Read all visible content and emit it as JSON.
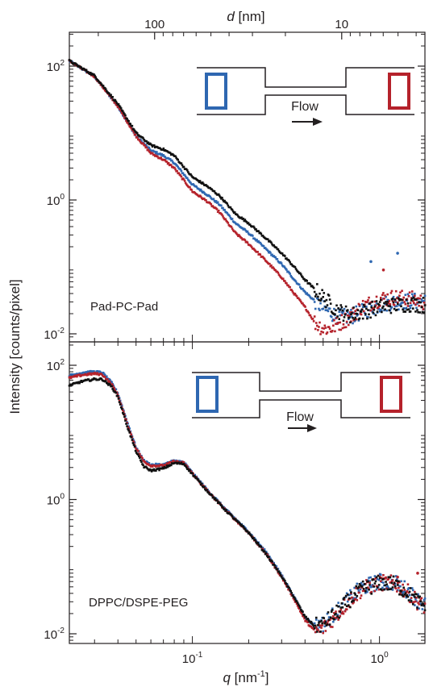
{
  "top_axis": {
    "label_var": "d",
    "label_unit": " [nm]",
    "ticks": [
      {
        "value": 100,
        "text": "100"
      },
      {
        "value": 10,
        "text": "10"
      }
    ]
  },
  "y_label": "Intensity [counts/pixel]",
  "x_label_var": "q",
  "x_label_unit": " [nm",
  "x_label_sup": "-1",
  "x_label_close": "]",
  "colors": {
    "blue": "#2e67b1",
    "red": "#b5222b",
    "black": "#111111",
    "frame": "#231f20"
  },
  "chart_data": [
    {
      "type": "scatter",
      "panel": "top",
      "annotation": "Pad-PC-Pad",
      "inset_label": "Flow",
      "xscale": "log",
      "yscale": "log",
      "xlim": [
        0.022,
        1.75
      ],
      "ylim": [
        0.007,
        130
      ],
      "y_ticks": [
        {
          "value": 100,
          "base": "10",
          "exp": "2"
        },
        {
          "value": 1,
          "base": "10",
          "exp": "0"
        },
        {
          "value": 0.01,
          "base": "10",
          "exp": "-2"
        }
      ],
      "series": [
        {
          "color_key": "blue",
          "points": [
            [
              0.022,
              120
            ],
            [
              0.03,
              70
            ],
            [
              0.04,
              25
            ],
            [
              0.05,
              9
            ],
            [
              0.06,
              5.5
            ],
            [
              0.07,
              4.6
            ],
            [
              0.08,
              3.6
            ],
            [
              0.1,
              1.7
            ],
            [
              0.12,
              1.2
            ],
            [
              0.14,
              0.85
            ],
            [
              0.17,
              0.45
            ],
            [
              0.2,
              0.32
            ],
            [
              0.25,
              0.18
            ],
            [
              0.3,
              0.11
            ],
            [
              0.35,
              0.065
            ],
            [
              0.4,
              0.042
            ],
            [
              0.5,
              0.024
            ],
            [
              0.6,
              0.018
            ],
            [
              0.7,
              0.018
            ],
            [
              0.8,
              0.021
            ],
            [
              1.0,
              0.027
            ],
            [
              1.2,
              0.03
            ],
            [
              1.5,
              0.031
            ],
            [
              1.7,
              0.03
            ]
          ]
        },
        {
          "color_key": "red",
          "points": [
            [
              0.022,
              120
            ],
            [
              0.03,
              70
            ],
            [
              0.04,
              25
            ],
            [
              0.05,
              9
            ],
            [
              0.06,
              5.0
            ],
            [
              0.07,
              4.0
            ],
            [
              0.08,
              3.0
            ],
            [
              0.1,
              1.35
            ],
            [
              0.12,
              0.95
            ],
            [
              0.14,
              0.65
            ],
            [
              0.17,
              0.32
            ],
            [
              0.2,
              0.22
            ],
            [
              0.25,
              0.12
            ],
            [
              0.3,
              0.07
            ],
            [
              0.35,
              0.04
            ],
            [
              0.4,
              0.025
            ],
            [
              0.45,
              0.015
            ],
            [
              0.5,
              0.012
            ],
            [
              0.55,
              0.012
            ],
            [
              0.6,
              0.014
            ],
            [
              0.7,
              0.018
            ],
            [
              0.8,
              0.025
            ],
            [
              1.0,
              0.033
            ],
            [
              1.2,
              0.035
            ],
            [
              1.5,
              0.033
            ],
            [
              1.7,
              0.03
            ]
          ]
        },
        {
          "color_key": "black",
          "points": [
            [
              0.022,
              120
            ],
            [
              0.03,
              72
            ],
            [
              0.04,
              27
            ],
            [
              0.05,
              10
            ],
            [
              0.06,
              6.6
            ],
            [
              0.07,
              5.7
            ],
            [
              0.08,
              4.6
            ],
            [
              0.1,
              2.2
            ],
            [
              0.12,
              1.6
            ],
            [
              0.14,
              1.15
            ],
            [
              0.17,
              0.62
            ],
            [
              0.2,
              0.45
            ],
            [
              0.25,
              0.26
            ],
            [
              0.3,
              0.16
            ],
            [
              0.35,
              0.1
            ],
            [
              0.4,
              0.064
            ],
            [
              0.5,
              0.035
            ],
            [
              0.6,
              0.022
            ],
            [
              0.7,
              0.019
            ],
            [
              0.8,
              0.021
            ],
            [
              1.0,
              0.025
            ],
            [
              1.2,
              0.027
            ],
            [
              1.5,
              0.028
            ],
            [
              1.7,
              0.027
            ]
          ]
        }
      ],
      "outliers": [
        {
          "color_key": "blue",
          "q": 0.9,
          "y": 0.12
        },
        {
          "color_key": "blue",
          "q": 1.25,
          "y": 0.16
        },
        {
          "color_key": "red",
          "q": 1.05,
          "y": 0.09
        }
      ]
    },
    {
      "type": "scatter",
      "panel": "bottom",
      "annotation": "DPPC/DSPE-PEG",
      "inset_label": "Flow",
      "xscale": "log",
      "yscale": "log",
      "xlim": [
        0.022,
        1.75
      ],
      "ylim": [
        0.007,
        130
      ],
      "y_ticks": [
        {
          "value": 100,
          "base": "10",
          "exp": "2"
        },
        {
          "value": 1,
          "base": "10",
          "exp": "0"
        },
        {
          "value": 0.01,
          "base": "10",
          "exp": "-2"
        }
      ],
      "series": [
        {
          "color_key": "blue",
          "points": [
            [
              0.022,
              70
            ],
            [
              0.026,
              78
            ],
            [
              0.03,
              80
            ],
            [
              0.033,
              78
            ],
            [
              0.037,
              55
            ],
            [
              0.04,
              38
            ],
            [
              0.045,
              14
            ],
            [
              0.05,
              6
            ],
            [
              0.055,
              3.8
            ],
            [
              0.06,
              3.3
            ],
            [
              0.07,
              3.3
            ],
            [
              0.08,
              3.8
            ],
            [
              0.09,
              3.6
            ],
            [
              0.1,
              2.5
            ],
            [
              0.12,
              1.4
            ],
            [
              0.15,
              0.72
            ],
            [
              0.2,
              0.33
            ],
            [
              0.25,
              0.16
            ],
            [
              0.3,
              0.075
            ],
            [
              0.35,
              0.035
            ],
            [
              0.4,
              0.018
            ],
            [
              0.45,
              0.013
            ],
            [
              0.5,
              0.014
            ],
            [
              0.6,
              0.022
            ],
            [
              0.7,
              0.035
            ],
            [
              0.8,
              0.048
            ],
            [
              1.0,
              0.06
            ],
            [
              1.2,
              0.058
            ],
            [
              1.4,
              0.045
            ],
            [
              1.6,
              0.032
            ],
            [
              1.7,
              0.028
            ]
          ]
        },
        {
          "color_key": "red",
          "points": [
            [
              0.022,
              65
            ],
            [
              0.026,
              72
            ],
            [
              0.03,
              75
            ],
            [
              0.033,
              73
            ],
            [
              0.037,
              52
            ],
            [
              0.04,
              36
            ],
            [
              0.045,
              13
            ],
            [
              0.05,
              5.8
            ],
            [
              0.055,
              3.7
            ],
            [
              0.06,
              3.2
            ],
            [
              0.07,
              3.2
            ],
            [
              0.08,
              3.7
            ],
            [
              0.09,
              3.5
            ],
            [
              0.1,
              2.45
            ],
            [
              0.12,
              1.35
            ],
            [
              0.15,
              0.7
            ],
            [
              0.2,
              0.32
            ],
            [
              0.25,
              0.15
            ],
            [
              0.3,
              0.07
            ],
            [
              0.35,
              0.033
            ],
            [
              0.4,
              0.016
            ],
            [
              0.45,
              0.011
            ],
            [
              0.5,
              0.012
            ],
            [
              0.6,
              0.02
            ],
            [
              0.7,
              0.033
            ],
            [
              0.8,
              0.045
            ],
            [
              1.0,
              0.058
            ],
            [
              1.2,
              0.056
            ],
            [
              1.4,
              0.043
            ],
            [
              1.6,
              0.03
            ],
            [
              1.7,
              0.026
            ]
          ]
        },
        {
          "color_key": "black",
          "points": [
            [
              0.022,
              50
            ],
            [
              0.026,
              58
            ],
            [
              0.03,
              62
            ],
            [
              0.033,
              62
            ],
            [
              0.037,
              48
            ],
            [
              0.04,
              34
            ],
            [
              0.045,
              12
            ],
            [
              0.05,
              5.2
            ],
            [
              0.055,
              3.1
            ],
            [
              0.06,
              2.7
            ],
            [
              0.07,
              2.9
            ],
            [
              0.08,
              3.5
            ],
            [
              0.09,
              3.4
            ],
            [
              0.1,
              2.4
            ],
            [
              0.12,
              1.35
            ],
            [
              0.15,
              0.7
            ],
            [
              0.2,
              0.32
            ],
            [
              0.25,
              0.15
            ],
            [
              0.3,
              0.072
            ],
            [
              0.35,
              0.035
            ],
            [
              0.4,
              0.018
            ],
            [
              0.45,
              0.013
            ],
            [
              0.5,
              0.014
            ],
            [
              0.6,
              0.021
            ],
            [
              0.7,
              0.033
            ],
            [
              0.8,
              0.045
            ],
            [
              1.0,
              0.057
            ],
            [
              1.2,
              0.055
            ],
            [
              1.4,
              0.042
            ],
            [
              1.6,
              0.03
            ],
            [
              1.7,
              0.027
            ]
          ]
        }
      ],
      "outliers": [
        {
          "color_key": "blue",
          "q": 0.9,
          "y": 0.05
        },
        {
          "color_key": "red",
          "q": 1.6,
          "y": 0.08
        },
        {
          "color_key": "red",
          "q": 1.25,
          "y": 0.07
        }
      ]
    }
  ]
}
